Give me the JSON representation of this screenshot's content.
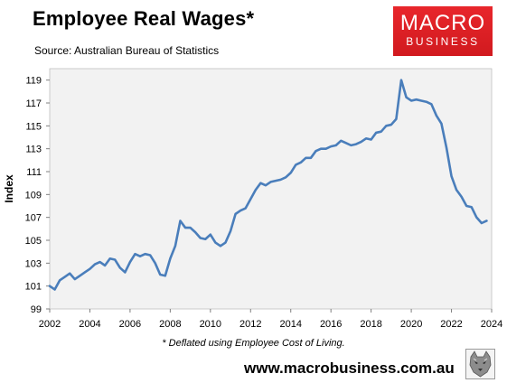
{
  "header": {
    "title": "Employee Real Wages*",
    "source": "Source: Australian Bureau of Statistics"
  },
  "logo": {
    "line1": "MACRO",
    "line2": "BUSINESS",
    "color": "#e0252a"
  },
  "footer": {
    "note": "* Deflated using Employee Cost of Living.",
    "url": "www.macrobusiness.com.au",
    "wolf_icon": "wolf-head-icon"
  },
  "chart_data": {
    "type": "line",
    "title": "Employee Real Wages*",
    "xlabel": "",
    "ylabel": "Index",
    "xlim": [
      2002,
      2024
    ],
    "ylim": [
      99,
      120
    ],
    "yticks": [
      99,
      101,
      103,
      105,
      107,
      109,
      111,
      113,
      115,
      117,
      119
    ],
    "xticks": [
      2002,
      2004,
      2006,
      2008,
      2010,
      2012,
      2014,
      2016,
      2018,
      2020,
      2022,
      2024
    ],
    "grid": false,
    "legend": "none",
    "plot_background": "#f2f2f2",
    "line_color": "#4a7ebb",
    "series": [
      {
        "x": [
          2002.0,
          2002.25,
          2002.5,
          2002.75,
          2003.0,
          2003.25,
          2003.5,
          2003.75,
          2004.0,
          2004.25,
          2004.5,
          2004.75,
          2005.0,
          2005.25,
          2005.5,
          2005.75,
          2006.0,
          2006.25,
          2006.5,
          2006.75,
          2007.0,
          2007.25,
          2007.5,
          2007.75,
          2008.0,
          2008.25,
          2008.5,
          2008.75,
          2009.0,
          2009.25,
          2009.5,
          2009.75,
          2010.0,
          2010.25,
          2010.5,
          2010.75,
          2011.0,
          2011.25,
          2011.5,
          2011.75,
          2012.0,
          2012.25,
          2012.5,
          2012.75,
          2013.0,
          2013.25,
          2013.5,
          2013.75,
          2014.0,
          2014.25,
          2014.5,
          2014.75,
          2015.0,
          2015.25,
          2015.5,
          2015.75,
          2016.0,
          2016.25,
          2016.5,
          2016.75,
          2017.0,
          2017.25,
          2017.5,
          2017.75,
          2018.0,
          2018.25,
          2018.5,
          2018.75,
          2019.0,
          2019.25,
          2019.5,
          2019.75,
          2020.0,
          2020.25,
          2020.5,
          2020.75,
          2021.0,
          2021.25,
          2021.5,
          2021.75,
          2022.0,
          2022.25,
          2022.5,
          2022.75,
          2023.0,
          2023.25,
          2023.5,
          2023.75
        ],
        "values": [
          101.0,
          100.7,
          101.5,
          101.8,
          102.1,
          101.6,
          101.9,
          102.2,
          102.5,
          102.9,
          103.1,
          102.8,
          103.4,
          103.3,
          102.6,
          102.2,
          103.1,
          103.8,
          103.6,
          103.8,
          103.7,
          103.0,
          102.0,
          101.9,
          103.4,
          104.5,
          106.7,
          106.1,
          106.1,
          105.7,
          105.2,
          105.1,
          105.5,
          104.8,
          104.5,
          104.8,
          105.8,
          107.3,
          107.6,
          107.8,
          108.6,
          109.4,
          110.0,
          109.8,
          110.1,
          110.2,
          110.3,
          110.5,
          110.9,
          111.6,
          111.8,
          112.2,
          112.2,
          112.8,
          113.0,
          113.0,
          113.2,
          113.3,
          113.7,
          113.5,
          113.3,
          113.4,
          113.6,
          113.9,
          113.8,
          114.4,
          114.5,
          115.0,
          115.1,
          115.6,
          119.0,
          117.5,
          117.2,
          117.3,
          117.2,
          117.1,
          116.9,
          115.9,
          115.2,
          113.1,
          110.6,
          109.4,
          108.8,
          108.0,
          107.9,
          107.0,
          106.5,
          106.7
        ]
      }
    ]
  }
}
